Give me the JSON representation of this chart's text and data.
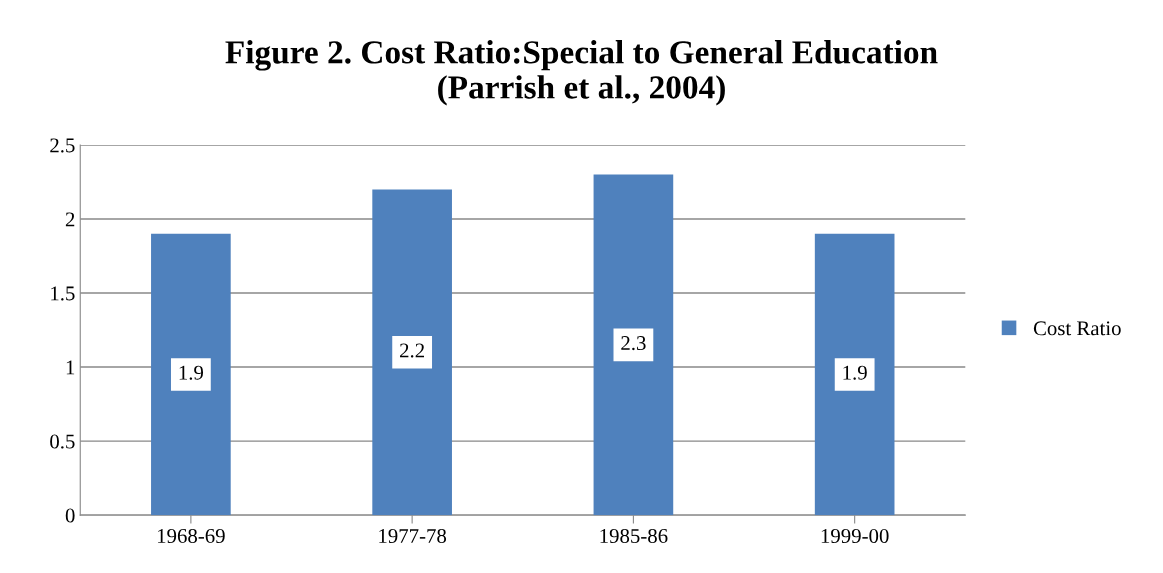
{
  "chart_data": {
    "type": "bar",
    "title": "Figure 2. Cost Ratio:Special to General Education\n(Parrish et al., 2004)",
    "categories": [
      "1968-69",
      "1977-78",
      "1985-86",
      "1999-00"
    ],
    "series": [
      {
        "name": "Cost Ratio",
        "color": "#4f81bd",
        "values": [
          1.9,
          2.2,
          2.3,
          1.9
        ]
      }
    ],
    "ylim": [
      0,
      2.5
    ],
    "yticks": [
      0,
      0.5,
      1,
      1.5,
      2,
      2.5
    ],
    "grid": "y",
    "legend": "right",
    "data_labels": true
  }
}
